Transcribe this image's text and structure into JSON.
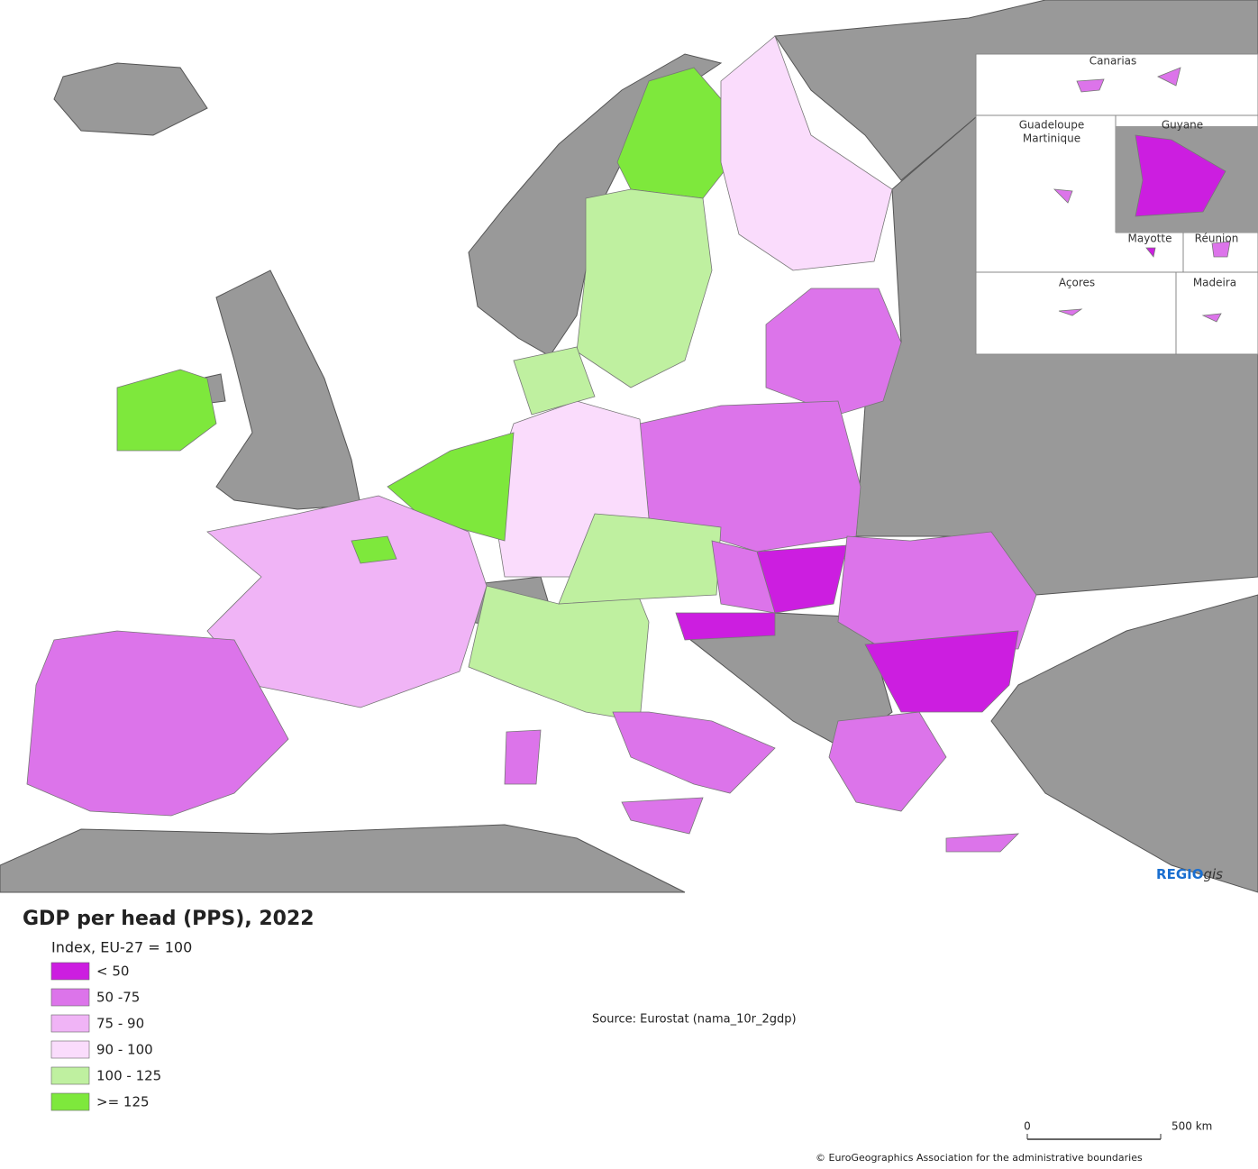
{
  "map": {
    "title": "GDP per head (PPS), 2022",
    "subtitle": "Index, EU-27 = 100",
    "legend": [
      {
        "label": "< 50",
        "color": "#cc1ee0"
      },
      {
        "label": "50 -75",
        "color": "#dc74ea"
      },
      {
        "label": "75 - 90",
        "color": "#f0b4f6"
      },
      {
        "label": "90 - 100",
        "color": "#fadcfc"
      },
      {
        "label": "100 - 125",
        "color": "#bff0a0"
      },
      {
        "label": ">= 125",
        "color": "#7ee83c"
      }
    ],
    "source": "Source: Eurostat (nama_10r_2gdp)",
    "insets": [
      "Canarias",
      "Guadeloupe",
      "Martinique",
      "Guyane",
      "Mayotte",
      "Réunion",
      "Açores",
      "Madeira"
    ],
    "scale_labels": [
      "0",
      "500 km"
    ],
    "credit": "© EuroGeographics Association for the administrative boundaries",
    "logo": {
      "main": "REGIO",
      "italic": "gis"
    }
  }
}
